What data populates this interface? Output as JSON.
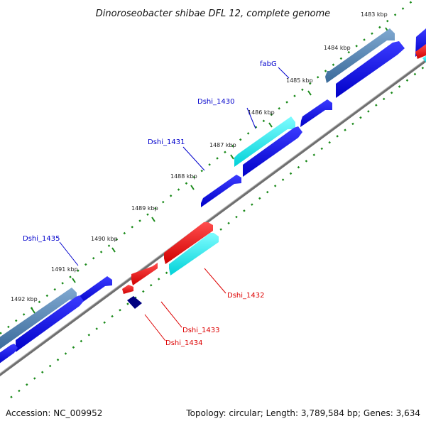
{
  "title": "Dinoroseobacter shibae DFL 12, complete genome",
  "footer": {
    "accession": "Accession: NC_009952",
    "summary": "Topology: circular; Length: 3,789,584 bp; Genes: 3,634"
  },
  "ticks": [
    "1483 kbp",
    "1484 kbp",
    "1485 kbp",
    "1486 kbp",
    "1487 kbp",
    "1488 kbp",
    "1489 kbp",
    "1490 kbp",
    "1491 kbp",
    "1492 kbp"
  ],
  "genes": [
    {
      "name": "fabG",
      "color": "#0000cc"
    },
    {
      "name": "Dshi_1430",
      "color": "#0000cc"
    },
    {
      "name": "Dshi_1431",
      "color": "#0000cc"
    },
    {
      "name": "Dshi_1435",
      "color": "#0000cc"
    },
    {
      "name": "Dshi_1432",
      "color": "#dd0000"
    },
    {
      "name": "Dshi_1433",
      "color": "#dd0000"
    },
    {
      "name": "Dshi_1434",
      "color": "#dd0000"
    }
  ],
  "colors": {
    "cds_blue": "#0000e6",
    "rrna_cyan": "#00e5e5",
    "steel": "#4a7fb0",
    "reverse_red": "#ee0000",
    "navy": "#000080",
    "backbone": "#777777",
    "dots": "#1a8a1a"
  }
}
